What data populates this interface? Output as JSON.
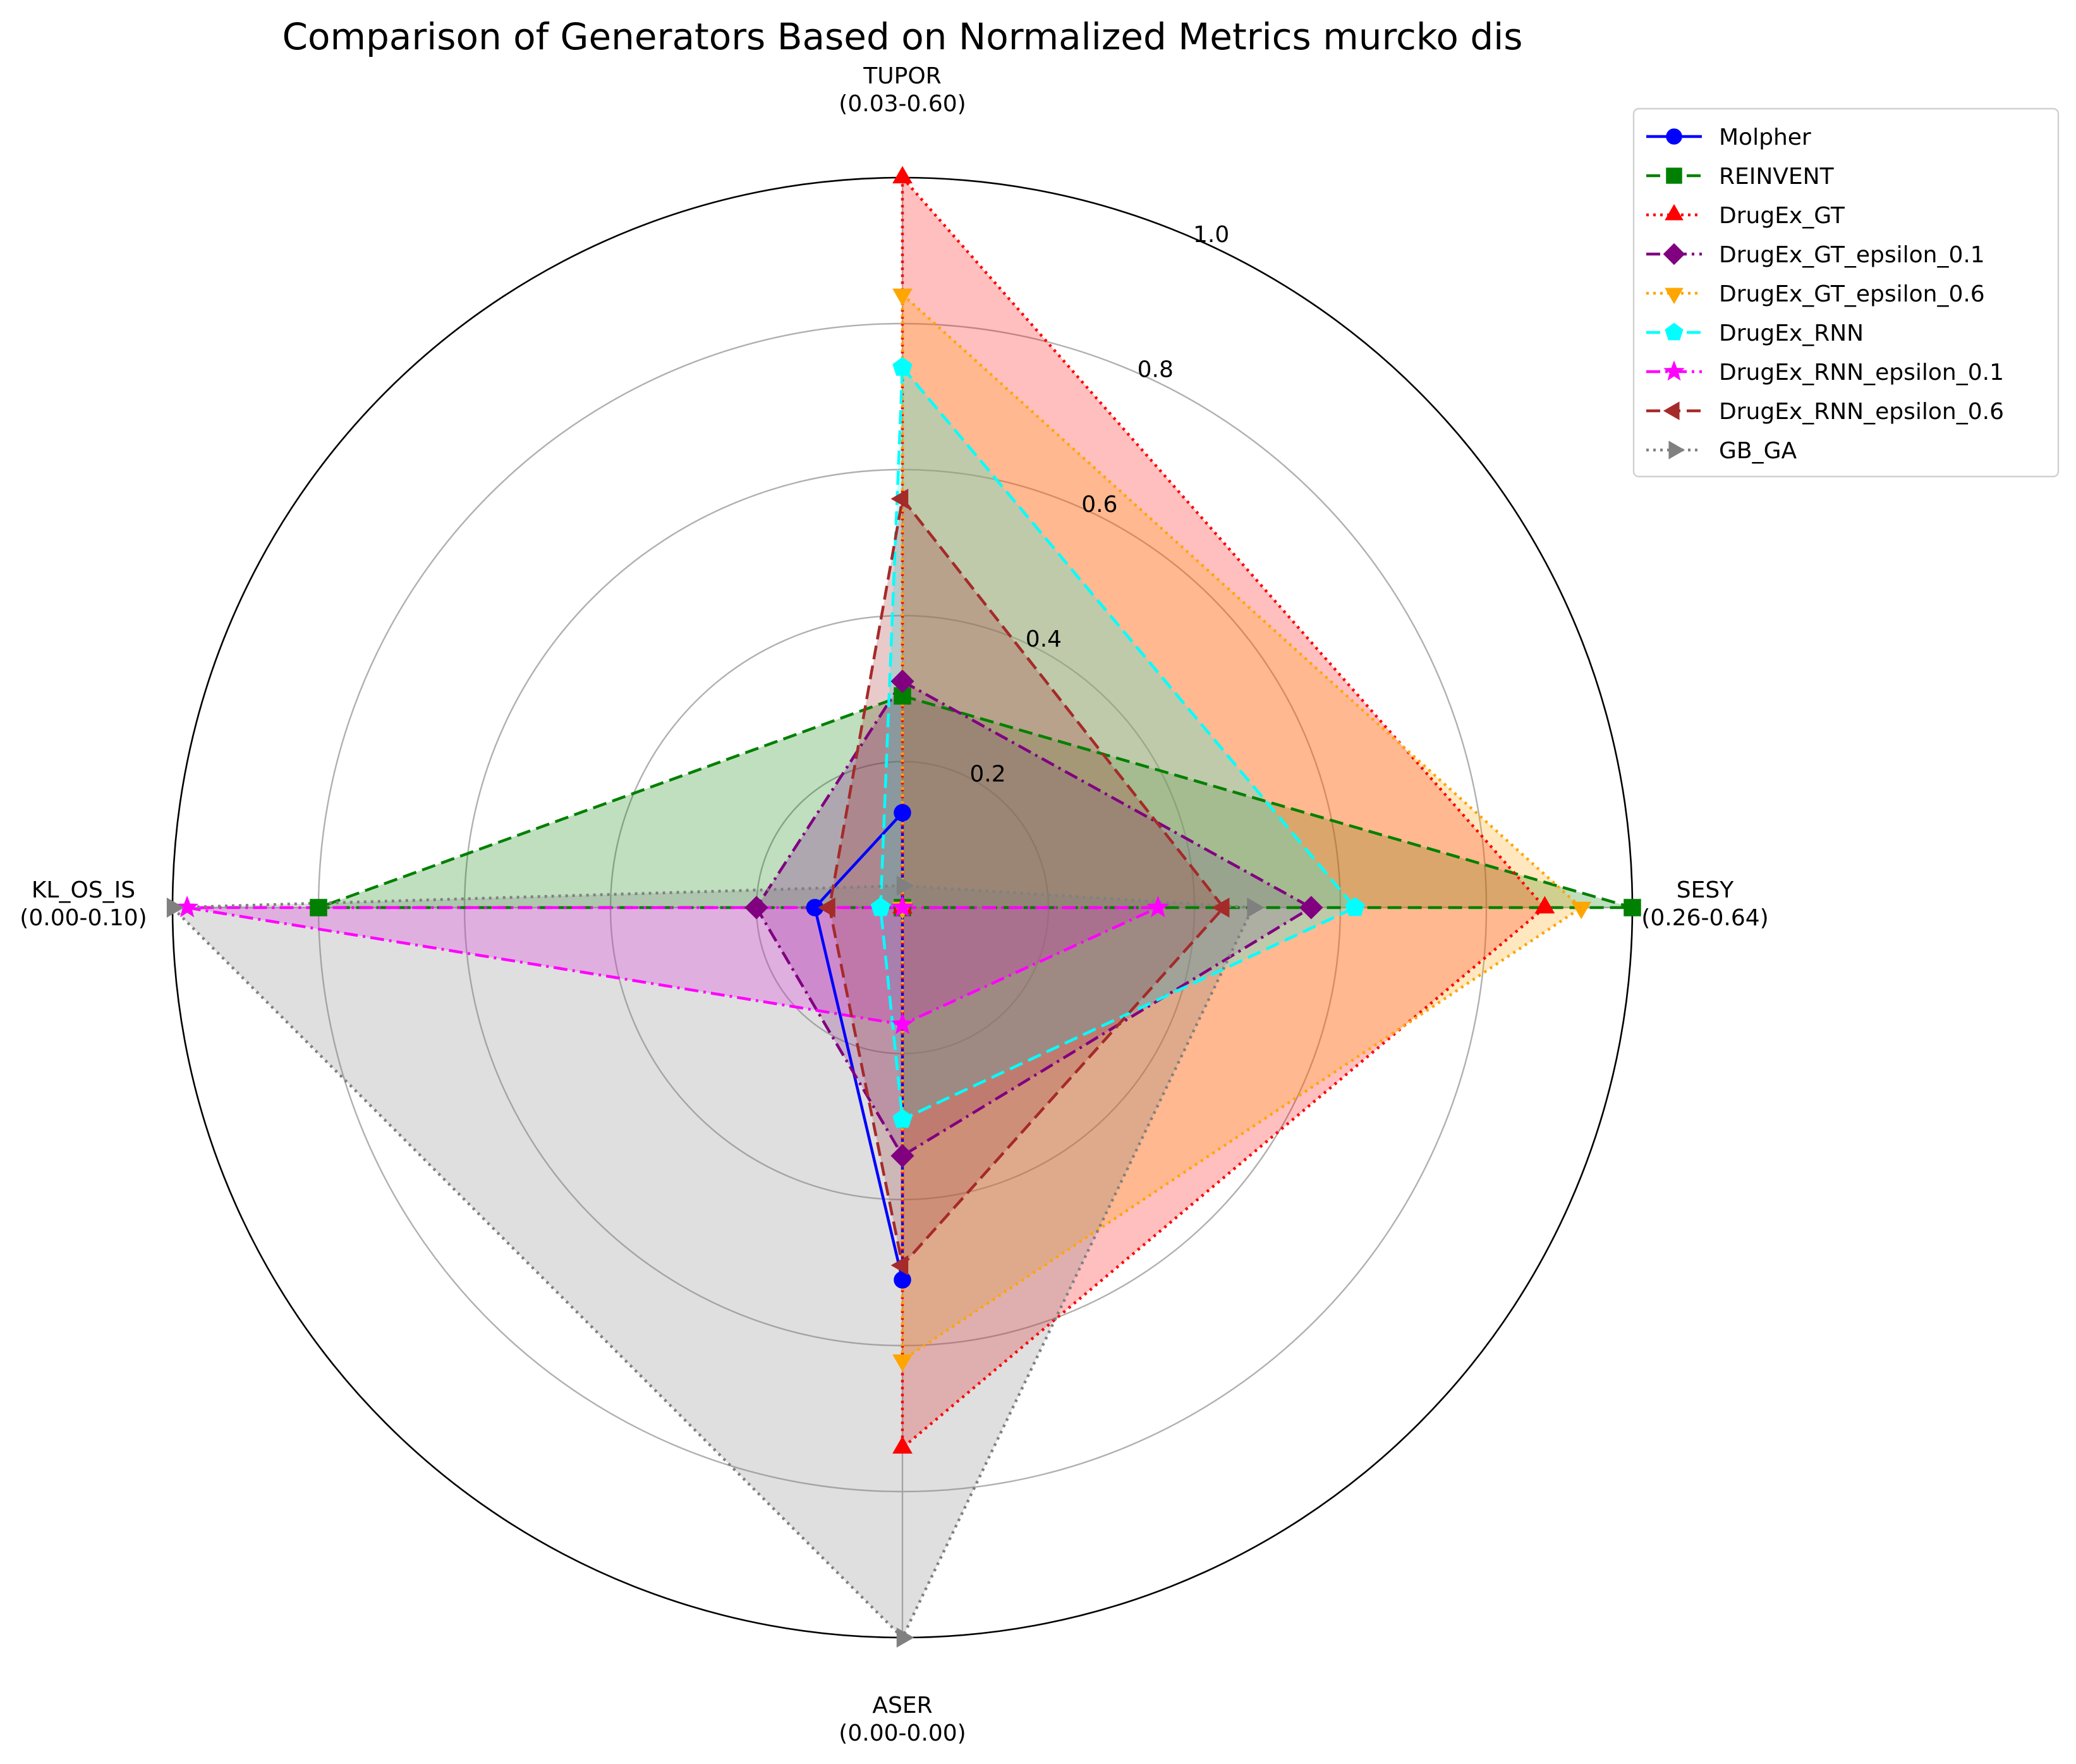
{
  "chart_data": {
    "type": "radar",
    "title": "Comparison of Generators Based on Normalized Metrics murcko dis",
    "axes": [
      {
        "name": "TUPOR",
        "range": "(0.03-0.60)"
      },
      {
        "name": "SESY",
        "range": "(0.26-0.64)"
      },
      {
        "name": "ASER",
        "range": "(0.00-0.00)"
      },
      {
        "name": "KL_OS_IS",
        "range": "(0.00-0.10)"
      }
    ],
    "r_ticks": [
      "0.2",
      "0.4",
      "0.6",
      "0.8",
      "1.0"
    ],
    "r_lim": [
      0,
      1
    ],
    "grid": true,
    "legend_position": "upper-right-outside",
    "series": [
      {
        "name": "Molpher",
        "values": [
          0.13,
          0.0,
          0.51,
          0.12
        ],
        "color": "#0000ff",
        "dash": "solid",
        "marker": "circle",
        "fill": false
      },
      {
        "name": "REINVENT",
        "values": [
          0.29,
          1.0,
          0.0,
          0.8
        ],
        "color": "#008000",
        "dash": "dashed",
        "marker": "square",
        "fill": true
      },
      {
        "name": "DrugEx_GT",
        "values": [
          1.0,
          0.88,
          0.74,
          0.0
        ],
        "color": "#ff0000",
        "dash": "dotted",
        "marker": "triangle-up",
        "fill": true
      },
      {
        "name": "DrugEx_GT_epsilon_0.1",
        "values": [
          0.31,
          0.56,
          0.34,
          0.2
        ],
        "color": "#800080",
        "dash": "dashdot",
        "marker": "diamond",
        "fill": true
      },
      {
        "name": "DrugEx_GT_epsilon_0.6",
        "values": [
          0.84,
          0.93,
          0.62,
          0.0
        ],
        "color": "#ffa500",
        "dash": "dotted",
        "marker": "triangle-down",
        "fill": true
      },
      {
        "name": "DrugEx_RNN",
        "values": [
          0.74,
          0.62,
          0.29,
          0.03
        ],
        "color": "#00ffff",
        "dash": "dashed",
        "marker": "pentagon",
        "fill": true
      },
      {
        "name": "DrugEx_RNN_epsilon_0.1",
        "values": [
          0.0,
          0.35,
          0.16,
          0.98
        ],
        "color": "#ff00ff",
        "dash": "dashdot",
        "marker": "star",
        "fill": true
      },
      {
        "name": "DrugEx_RNN_epsilon_0.6",
        "values": [
          0.56,
          0.44,
          0.49,
          0.1
        ],
        "color": "#a52a2a",
        "dash": "dashed",
        "marker": "triangle-left",
        "fill": true
      },
      {
        "name": "GB_GA",
        "values": [
          0.03,
          0.48,
          1.0,
          1.0
        ],
        "color": "#808080",
        "dash": "dotted",
        "marker": "triangle-right",
        "fill": true
      }
    ]
  }
}
